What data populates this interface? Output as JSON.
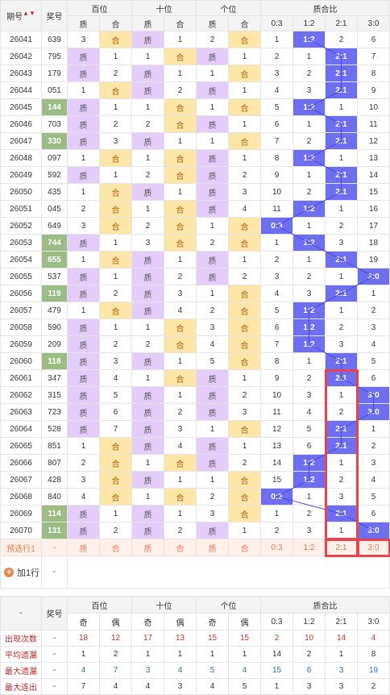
{
  "header": {
    "period": "期号",
    "prize": "奖号",
    "hundreds": "百位",
    "tens": "十位",
    "units": "个位",
    "ratio": "质合比",
    "zhi": "质",
    "he": "合",
    "ratio_cols": [
      "0:3",
      "1:2",
      "2:1",
      "3:0"
    ]
  },
  "rows": [
    {
      "p": "26041",
      "n": "639",
      "h": [
        "3",
        "合"
      ],
      "t": [
        "质",
        "1"
      ],
      "u": [
        "2",
        "合"
      ],
      "r": [
        "1",
        "1:2",
        "2",
        "6"
      ],
      "hl": false,
      "ri": 1
    },
    {
      "p": "26042",
      "n": "795",
      "h": [
        "质",
        "1"
      ],
      "t": [
        "1",
        "合"
      ],
      "u": [
        "质",
        "1"
      ],
      "r": [
        "2",
        "1",
        "2:1",
        "7"
      ],
      "hl": false,
      "ri": 2
    },
    {
      "p": "26043",
      "n": "179",
      "h": [
        "质",
        "2"
      ],
      "t": [
        "质",
        "1"
      ],
      "u": [
        "1",
        "合"
      ],
      "r": [
        "3",
        "2",
        "2:1",
        "8"
      ],
      "hl": false,
      "ri": 2
    },
    {
      "p": "26044",
      "n": "051",
      "h": [
        "1",
        "合"
      ],
      "t": [
        "质",
        "2"
      ],
      "u": [
        "质",
        "1"
      ],
      "r": [
        "4",
        "3",
        "2:1",
        "9"
      ],
      "hl": false,
      "ri": 2
    },
    {
      "p": "26045",
      "n": "144",
      "h": [
        "质",
        "1"
      ],
      "t": [
        "1",
        "合"
      ],
      "u": [
        "1",
        "合"
      ],
      "r": [
        "5",
        "1:2",
        "1",
        "10"
      ],
      "hl": true,
      "ri": 1
    },
    {
      "p": "26046",
      "n": "703",
      "h": [
        "质",
        "2"
      ],
      "t": [
        "2",
        "合"
      ],
      "u": [
        "质",
        "1"
      ],
      "r": [
        "6",
        "1",
        "2:1",
        "11"
      ],
      "hl": false,
      "ri": 2
    },
    {
      "p": "26047",
      "n": "330",
      "h": [
        "质",
        "3"
      ],
      "t": [
        "质",
        "1"
      ],
      "u": [
        "1",
        "合"
      ],
      "r": [
        "7",
        "2",
        "2:1",
        "12"
      ],
      "hl": true,
      "ri": 2
    },
    {
      "p": "26048",
      "n": "097",
      "h": [
        "1",
        "合"
      ],
      "t": [
        "1",
        "合"
      ],
      "u": [
        "质",
        "1"
      ],
      "r": [
        "8",
        "1:2",
        "1",
        "13"
      ],
      "hl": false,
      "ri": 1
    },
    {
      "p": "26049",
      "n": "592",
      "h": [
        "质",
        "1"
      ],
      "t": [
        "2",
        "合"
      ],
      "u": [
        "质",
        "2"
      ],
      "r": [
        "9",
        "1",
        "2:1",
        "14"
      ],
      "hl": false,
      "ri": 2
    },
    {
      "p": "26050",
      "n": "435",
      "h": [
        "1",
        "合"
      ],
      "t": [
        "质",
        "1"
      ],
      "u": [
        "质",
        "3"
      ],
      "r": [
        "10",
        "2",
        "2:1",
        "15"
      ],
      "hl": false,
      "ri": 2
    },
    {
      "p": "26051",
      "n": "045",
      "h": [
        "2",
        "合"
      ],
      "t": [
        "1",
        "合"
      ],
      "u": [
        "质",
        "4"
      ],
      "r": [
        "11",
        "1:2",
        "1",
        "16"
      ],
      "hl": false,
      "ri": 1
    },
    {
      "p": "26052",
      "n": "649",
      "h": [
        "3",
        "合"
      ],
      "t": [
        "2",
        "合"
      ],
      "u": [
        "1",
        "合"
      ],
      "r": [
        "0:3",
        "1",
        "2",
        "17"
      ],
      "hl": false,
      "ri": 0
    },
    {
      "p": "26053",
      "n": "744",
      "h": [
        "质",
        "1"
      ],
      "t": [
        "3",
        "合"
      ],
      "u": [
        "2",
        "合"
      ],
      "r": [
        "1",
        "1:2",
        "3",
        "18"
      ],
      "hl": true,
      "ri": 1
    },
    {
      "p": "26054",
      "n": "655",
      "h": [
        "1",
        "合"
      ],
      "t": [
        "质",
        "1"
      ],
      "u": [
        "质",
        "1"
      ],
      "r": [
        "2",
        "1",
        "2:1",
        "19"
      ],
      "hl": true,
      "ri": 2
    },
    {
      "p": "26055",
      "n": "537",
      "h": [
        "质",
        "1"
      ],
      "t": [
        "质",
        "2"
      ],
      "u": [
        "质",
        "2"
      ],
      "r": [
        "3",
        "2",
        "1",
        "3:0"
      ],
      "hl": false,
      "ri": 3
    },
    {
      "p": "26056",
      "n": "119",
      "h": [
        "质",
        "2"
      ],
      "t": [
        "质",
        "3"
      ],
      "u": [
        "1",
        "合"
      ],
      "r": [
        "4",
        "3",
        "2:1",
        "1"
      ],
      "hl": true,
      "ri": 2
    },
    {
      "p": "26057",
      "n": "479",
      "h": [
        "1",
        "合"
      ],
      "t": [
        "质",
        "4"
      ],
      "u": [
        "2",
        "合"
      ],
      "r": [
        "5",
        "1:2",
        "1",
        "2"
      ],
      "hl": false,
      "ri": 1
    },
    {
      "p": "26058",
      "n": "590",
      "h": [
        "质",
        "1"
      ],
      "t": [
        "1",
        "合"
      ],
      "u": [
        "3",
        "合"
      ],
      "r": [
        "6",
        "1:2",
        "2",
        "3"
      ],
      "hl": false,
      "ri": 1
    },
    {
      "p": "26059",
      "n": "209",
      "h": [
        "质",
        "2"
      ],
      "t": [
        "2",
        "合"
      ],
      "u": [
        "4",
        "合"
      ],
      "r": [
        "7",
        "1:2",
        "3",
        "4"
      ],
      "hl": false,
      "ri": 1
    },
    {
      "p": "26060",
      "n": "118",
      "h": [
        "质",
        "3"
      ],
      "t": [
        "质",
        "1"
      ],
      "u": [
        "5",
        "合"
      ],
      "r": [
        "8",
        "1",
        "2:1",
        "5"
      ],
      "hl": true,
      "ri": 2
    },
    {
      "p": "26061",
      "n": "347",
      "h": [
        "质",
        "4"
      ],
      "t": [
        "1",
        "合"
      ],
      "u": [
        "质",
        "1"
      ],
      "r": [
        "9",
        "2",
        "2:1",
        "6"
      ],
      "hl": false,
      "ri": 2
    },
    {
      "p": "26062",
      "n": "315",
      "h": [
        "质",
        "5"
      ],
      "t": [
        "质",
        "1"
      ],
      "u": [
        "质",
        "2"
      ],
      "r": [
        "10",
        "3",
        "1",
        "3:0"
      ],
      "hl": false,
      "ri": 3
    },
    {
      "p": "26063",
      "n": "723",
      "h": [
        "质",
        "6"
      ],
      "t": [
        "质",
        "2"
      ],
      "u": [
        "质",
        "3"
      ],
      "r": [
        "11",
        "4",
        "2",
        "3:0"
      ],
      "hl": false,
      "ri": 3
    },
    {
      "p": "26064",
      "n": "528",
      "h": [
        "质",
        "7"
      ],
      "t": [
        "质",
        "3"
      ],
      "u": [
        "1",
        "合"
      ],
      "r": [
        "12",
        "5",
        "2:1",
        "1"
      ],
      "hl": false,
      "ri": 2
    },
    {
      "p": "26065",
      "n": "851",
      "h": [
        "1",
        "合"
      ],
      "t": [
        "质",
        "4"
      ],
      "u": [
        "质",
        "1"
      ],
      "r": [
        "13",
        "6",
        "2:1",
        "2"
      ],
      "hl": false,
      "ri": 2
    },
    {
      "p": "26066",
      "n": "807",
      "h": [
        "2",
        "合"
      ],
      "t": [
        "1",
        "合"
      ],
      "u": [
        "质",
        "2"
      ],
      "r": [
        "14",
        "1:2",
        "1",
        "3"
      ],
      "hl": false,
      "ri": 1
    },
    {
      "p": "26067",
      "n": "428",
      "h": [
        "3",
        "合"
      ],
      "t": [
        "质",
        "1"
      ],
      "u": [
        "1",
        "合"
      ],
      "r": [
        "15",
        "1:2",
        "2",
        "4"
      ],
      "hl": false,
      "ri": 1
    },
    {
      "p": "26068",
      "n": "840",
      "h": [
        "4",
        "合"
      ],
      "t": [
        "1",
        "合"
      ],
      "u": [
        "2",
        "合"
      ],
      "r": [
        "0:3",
        "1",
        "3",
        "5"
      ],
      "hl": false,
      "ri": 0
    },
    {
      "p": "26069",
      "n": "114",
      "h": [
        "质",
        "1"
      ],
      "t": [
        "质",
        "1"
      ],
      "u": [
        "3",
        "合"
      ],
      "r": [
        "1",
        "2",
        "2:1",
        "6"
      ],
      "hl": true,
      "ri": 2
    },
    {
      "p": "26070",
      "n": "131",
      "h": [
        "质",
        "2"
      ],
      "t": [
        "质",
        "2"
      ],
      "u": [
        "质",
        "1"
      ],
      "r": [
        "2",
        "3",
        "1",
        "3:0"
      ],
      "hl": true,
      "ri": 3
    }
  ],
  "preselect": {
    "label": "预选行1",
    "prize": "-",
    "cells": [
      "质",
      "合",
      "质",
      "合",
      "质",
      "合"
    ],
    "ratio": [
      "0:3",
      "1:2",
      "2:1",
      "3:0"
    ]
  },
  "add_row": {
    "label": "加1行",
    "dash": "-"
  },
  "footer_header": {
    "dash": "-",
    "prize": "奖号",
    "hundreds": "百位",
    "tens": "十位",
    "units": "个位",
    "ratio": "质合比",
    "odd": "奇",
    "even": "偶",
    "ratio_cols": [
      "0:3",
      "1:2",
      "2:1",
      "3:0"
    ]
  },
  "stats": [
    {
      "label": "出现次数",
      "dash": "-",
      "vals": [
        "18",
        "12",
        "17",
        "13",
        "15",
        "15",
        "2",
        "10",
        "14",
        "4"
      ]
    },
    {
      "label": "平均遗漏",
      "dash": "-",
      "vals": [
        "1",
        "2",
        "1",
        "1",
        "1",
        "1",
        "14",
        "2",
        "1",
        "8"
      ]
    },
    {
      "label": "最大遗漏",
      "dash": "-",
      "vals": [
        "4",
        "7",
        "3",
        "4",
        "5",
        "4",
        "15",
        "6",
        "3",
        "19"
      ]
    },
    {
      "label": "最大连出",
      "dash": "-",
      "vals": [
        "7",
        "4",
        "4",
        "3",
        "4",
        "5",
        "1",
        "3",
        "3",
        "2"
      ]
    }
  ],
  "colors": {
    "zhi": "#e4cdfa",
    "he": "#fde6a8",
    "highlight": "#9bbd85",
    "ratio_hit": "#6d6ef0",
    "box": "#e8424a"
  }
}
